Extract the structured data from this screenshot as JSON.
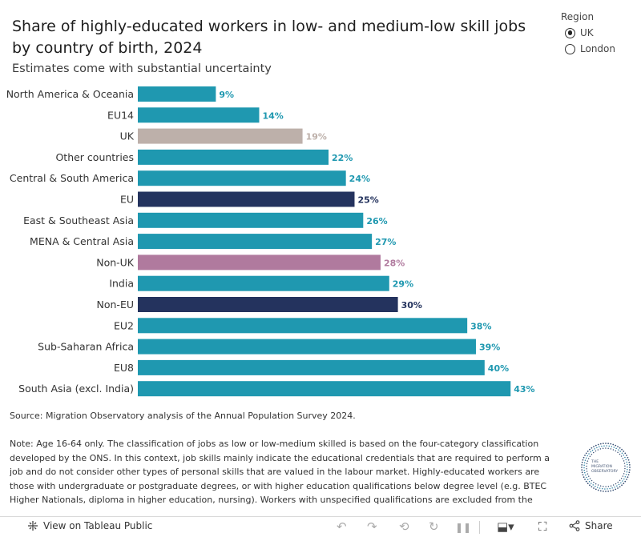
{
  "title": "Share of highly-educated workers in low- and medium-low skill jobs by country of birth, 2024",
  "subtitle": "Estimates come with substantial uncertainty",
  "region_filter": {
    "header": "Region",
    "options": [
      {
        "label": "UK",
        "selected": true
      },
      {
        "label": "London",
        "selected": false
      }
    ]
  },
  "chart_data": {
    "type": "bar",
    "orientation": "horizontal",
    "categories": [
      "North America & Oceania",
      "EU14",
      "UK",
      "Other countries",
      "Central & South America",
      "EU",
      "East & Southeast Asia",
      "MENA & Central Asia",
      "Non-UK",
      "India",
      "Non-EU",
      "EU2",
      "Sub-Saharan Africa",
      "EU8",
      "South Asia (excl. India)"
    ],
    "values": [
      9,
      14,
      19,
      22,
      24,
      25,
      26,
      27,
      28,
      29,
      30,
      38,
      39,
      40,
      43
    ],
    "data_labels": [
      "9%",
      "14%",
      "19%",
      "22%",
      "24%",
      "25%",
      "26%",
      "27%",
      "28%",
      "29%",
      "30%",
      "38%",
      "39%",
      "40%",
      "43%"
    ],
    "colors": [
      "#1f98b0",
      "#1f98b0",
      "#bdb0aa",
      "#1f98b0",
      "#1f98b0",
      "#24335e",
      "#1f98b0",
      "#1f98b0",
      "#b07a9e",
      "#1f98b0",
      "#24335e",
      "#1f98b0",
      "#1f98b0",
      "#1f98b0",
      "#1f98b0"
    ],
    "label_colors": [
      "#1f98b0",
      "#1f98b0",
      "#bdb0aa",
      "#1f98b0",
      "#1f98b0",
      "#24335e",
      "#1f98b0",
      "#1f98b0",
      "#b07a9e",
      "#1f98b0",
      "#24335e",
      "#1f98b0",
      "#1f98b0",
      "#1f98b0",
      "#1f98b0"
    ],
    "xlim": [
      0,
      43
    ],
    "grid": false,
    "legend": "none"
  },
  "source": "Source: Migration Observatory analysis of the Annual Population Survey 2024.",
  "note": "Note: Age 16-64 only. The classification of jobs as low or low-medium skilled is based on the four-category classification developed by the ONS. In this context, job skills mainly indicate the educational credentials that are required to perform a job and do not consider other types of personal skills that are valued in the labour market. Highly-educated workers are those with undergraduate or postgraduate degrees, or with higher education qualifications below degree level (e.g. BTEC Higher Nationals, diploma in higher education, nursing). Workers with unspecified qualifications are excluded from the",
  "logo": {
    "line1": "THE",
    "line2": "MIGRATION",
    "line3": "OBSERVATORY"
  },
  "footer": {
    "view_label": "View on Tableau Public",
    "share_label": "Share",
    "icons": [
      "tableau-icon",
      "undo-icon",
      "redo-icon",
      "revert-icon",
      "refresh-icon",
      "pause-icon",
      "download-icon",
      "fullscreen-icon",
      "share-icon"
    ]
  }
}
